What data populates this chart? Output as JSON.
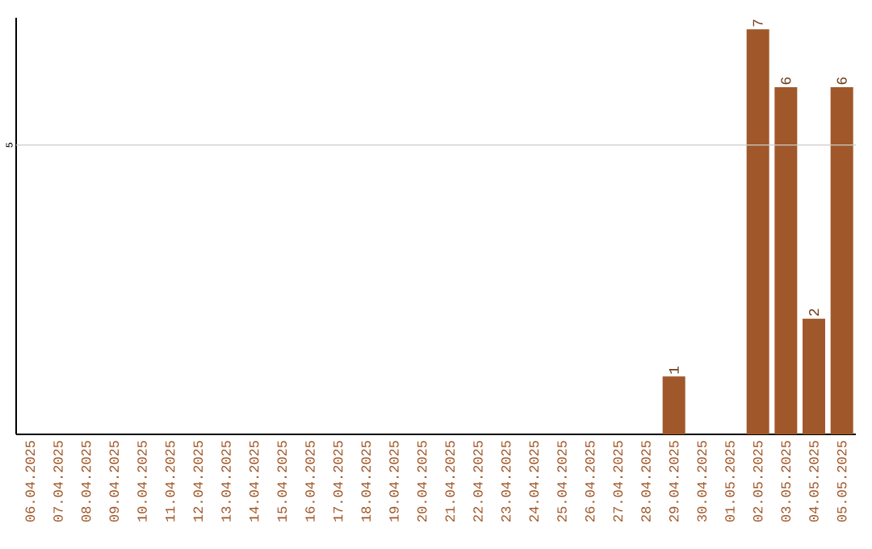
{
  "chart_data": {
    "type": "bar",
    "categories": [
      "06.04.2025",
      "07.04.2025",
      "08.04.2025",
      "09.04.2025",
      "10.04.2025",
      "11.04.2025",
      "12.04.2025",
      "13.04.2025",
      "14.04.2025",
      "15.04.2025",
      "16.04.2025",
      "17.04.2025",
      "18.04.2025",
      "19.04.2025",
      "20.04.2025",
      "21.04.2025",
      "22.04.2025",
      "23.04.2025",
      "24.04.2025",
      "25.04.2025",
      "26.04.2025",
      "27.04.2025",
      "28.04.2025",
      "29.04.2025",
      "30.04.2025",
      "01.05.2025",
      "02.05.2025",
      "03.05.2025",
      "04.05.2025",
      "05.05.2025"
    ],
    "values": [
      null,
      null,
      null,
      null,
      null,
      null,
      null,
      null,
      null,
      null,
      null,
      null,
      null,
      null,
      null,
      null,
      null,
      null,
      null,
      null,
      null,
      null,
      null,
      1,
      null,
      null,
      7,
      6,
      2,
      6
    ],
    "data_labels": true,
    "color": "#a0582a",
    "ylim": [
      0,
      7.2
    ],
    "ref_lines": [
      {
        "axis": "y",
        "value": 5,
        "label": "5",
        "color": "#cccccc"
      }
    ]
  }
}
